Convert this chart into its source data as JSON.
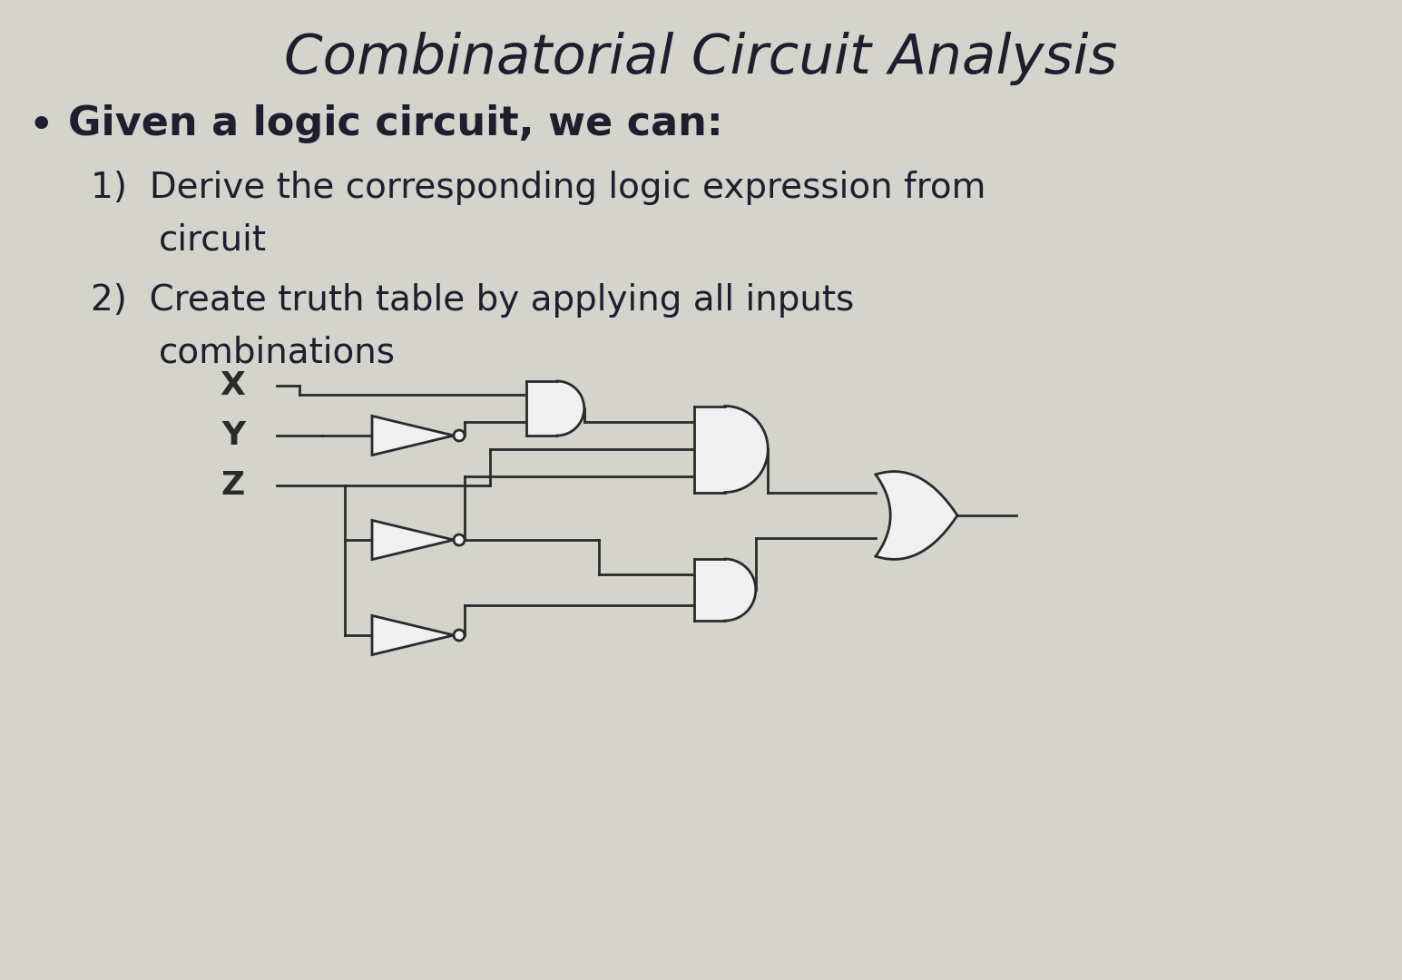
{
  "title": "Combinatorial Circuit Analysis",
  "bg_color": "#d4d4cc",
  "text_color": "#1e1e2e",
  "line_color": "#2a2a2a",
  "gate_fill": "#f0f0f0",
  "bullet": "•",
  "bullet_text": "Given a logic circuit, we can:",
  "item1a": "1)  Derive the corresponding logic expression from",
  "item1b": "circuit",
  "item2a": "2)  Create truth table by applying all inputs",
  "item2b": "combinations",
  "title_fs": 44,
  "bullet_fs": 32,
  "item_fs": 28,
  "input_fs": 26
}
